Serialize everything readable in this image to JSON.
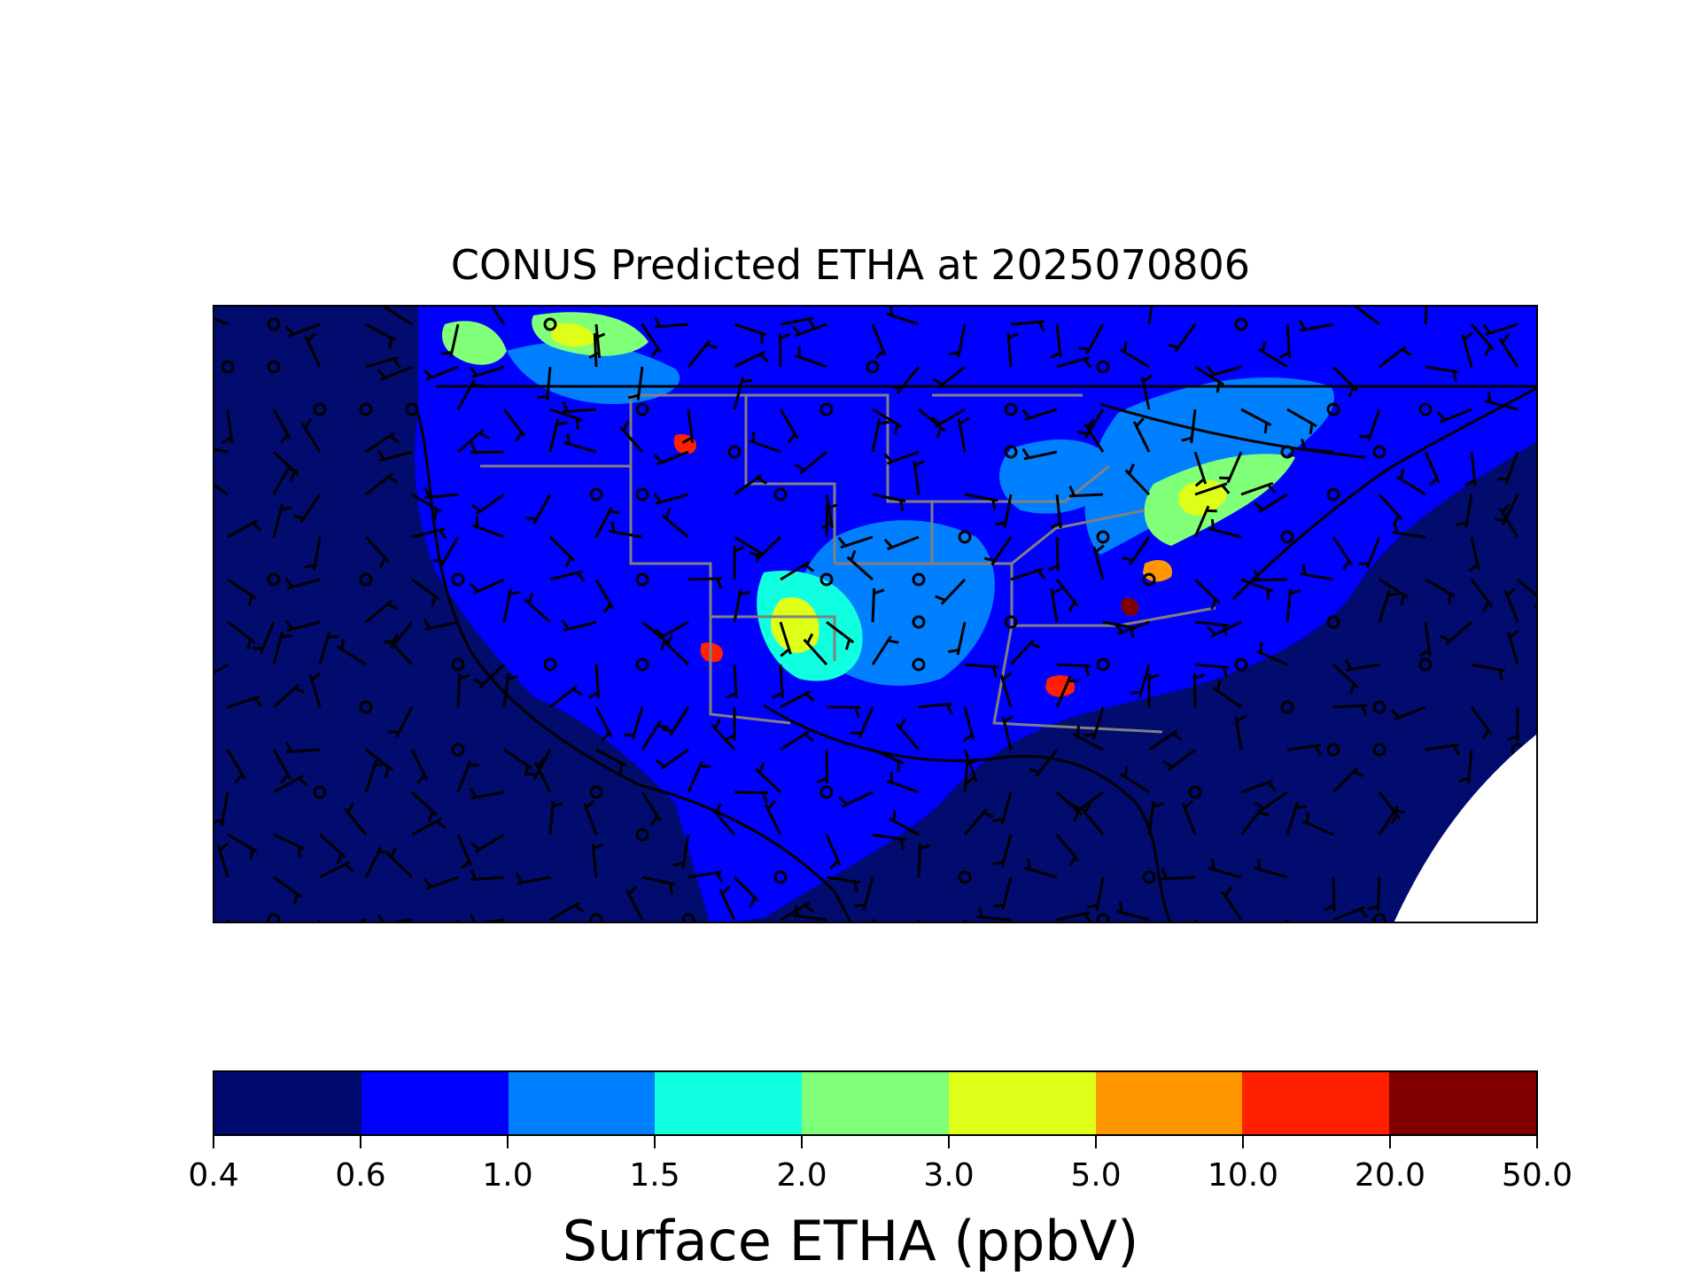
{
  "figure": {
    "title": "CONUS Predicted ETHA at 2025070806"
  },
  "colorbar": {
    "label": "Surface ETHA (ppbV)",
    "levels": [
      "0.4",
      "0.6",
      "1.0",
      "1.5",
      "2.0",
      "3.0",
      "5.0",
      "10.0",
      "20.0",
      "50.0"
    ],
    "colors": [
      "#00096e",
      "#0000ff",
      "#0080ff",
      "#10ffe0",
      "#80ff78",
      "#e0ff18",
      "#ff9800",
      "#ff2000",
      "#800000"
    ]
  },
  "map": {
    "background_color": "#00096e",
    "state_border_color": "#808080",
    "coast_color": "#000000",
    "wind_barb_color": "#000000"
  }
}
